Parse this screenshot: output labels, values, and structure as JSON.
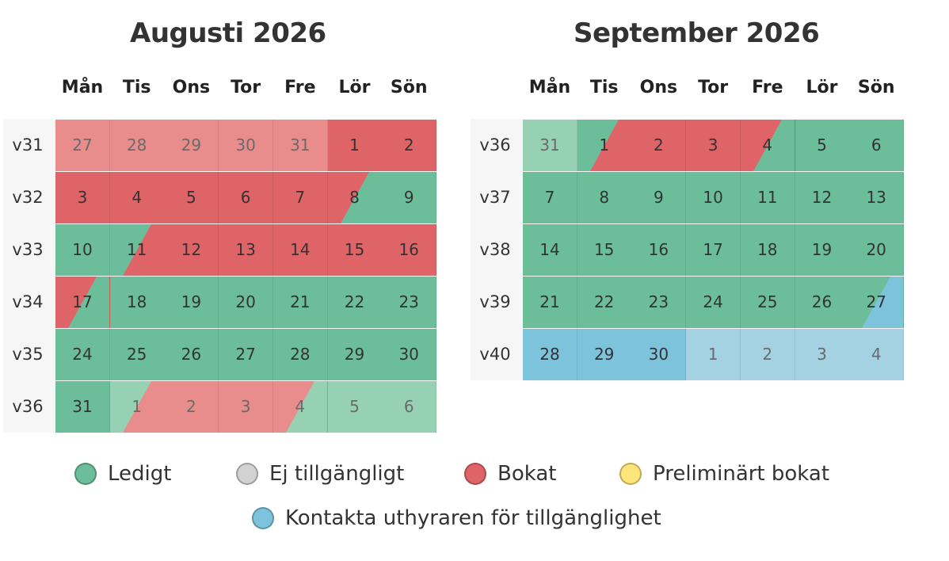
{
  "colors": {
    "free": "#6bbe99",
    "free_dim": "#97d1b3",
    "booked": "#df6468",
    "booked_dim": "#e98d8c",
    "contact": "#7dc3db",
    "contact_dim": "#a4d2e2",
    "unavailable": "#d2d2d2",
    "preliminary": "#fde57b"
  },
  "weekday_labels": [
    "Mån",
    "Tis",
    "Ons",
    "Tor",
    "Fre",
    "Lör",
    "Sön"
  ],
  "months": [
    {
      "title": "Augusti 2026",
      "weeks": [
        {
          "label": "v31",
          "days": [
            {
              "n": "27",
              "s": "booked",
              "dim": true
            },
            {
              "n": "28",
              "s": "booked",
              "dim": true
            },
            {
              "n": "29",
              "s": "booked",
              "dim": true
            },
            {
              "n": "30",
              "s": "booked",
              "dim": true
            },
            {
              "n": "31",
              "s": "booked",
              "dim": true
            },
            {
              "n": "1",
              "s": "booked"
            },
            {
              "n": "2",
              "s": "booked"
            }
          ]
        },
        {
          "label": "v32",
          "days": [
            {
              "n": "3",
              "s": "booked"
            },
            {
              "n": "4",
              "s": "booked"
            },
            {
              "n": "5",
              "s": "booked"
            },
            {
              "n": "6",
              "s": "booked"
            },
            {
              "n": "7",
              "s": "booked"
            },
            {
              "n": "8",
              "s": "booked",
              "to": "free"
            },
            {
              "n": "9",
              "s": "free"
            }
          ]
        },
        {
          "label": "v33",
          "days": [
            {
              "n": "10",
              "s": "free"
            },
            {
              "n": "11",
              "s": "free",
              "to": "booked"
            },
            {
              "n": "12",
              "s": "booked"
            },
            {
              "n": "13",
              "s": "booked"
            },
            {
              "n": "14",
              "s": "booked"
            },
            {
              "n": "15",
              "s": "booked"
            },
            {
              "n": "16",
              "s": "booked"
            }
          ]
        },
        {
          "label": "v34",
          "days": [
            {
              "n": "17",
              "s": "booked",
              "to": "free"
            },
            {
              "n": "18",
              "s": "free"
            },
            {
              "n": "19",
              "s": "free"
            },
            {
              "n": "20",
              "s": "free"
            },
            {
              "n": "21",
              "s": "free"
            },
            {
              "n": "22",
              "s": "free"
            },
            {
              "n": "23",
              "s": "free"
            }
          ]
        },
        {
          "label": "v35",
          "days": [
            {
              "n": "24",
              "s": "free"
            },
            {
              "n": "25",
              "s": "free"
            },
            {
              "n": "26",
              "s": "free"
            },
            {
              "n": "27",
              "s": "free"
            },
            {
              "n": "28",
              "s": "free"
            },
            {
              "n": "29",
              "s": "free"
            },
            {
              "n": "30",
              "s": "free"
            }
          ]
        },
        {
          "label": "v36",
          "days": [
            {
              "n": "31",
              "s": "free"
            },
            {
              "n": "1",
              "s": "free",
              "to": "booked",
              "dim": true
            },
            {
              "n": "2",
              "s": "booked",
              "dim": true
            },
            {
              "n": "3",
              "s": "booked",
              "dim": true
            },
            {
              "n": "4",
              "s": "booked",
              "to": "free",
              "dim": true
            },
            {
              "n": "5",
              "s": "free",
              "dim": true
            },
            {
              "n": "6",
              "s": "free",
              "dim": true
            }
          ]
        }
      ]
    },
    {
      "title": "September 2026",
      "weeks": [
        {
          "label": "v36",
          "days": [
            {
              "n": "31",
              "s": "free",
              "dim": true
            },
            {
              "n": "1",
              "s": "free",
              "to": "booked"
            },
            {
              "n": "2",
              "s": "booked"
            },
            {
              "n": "3",
              "s": "booked"
            },
            {
              "n": "4",
              "s": "booked",
              "to": "free"
            },
            {
              "n": "5",
              "s": "free"
            },
            {
              "n": "6",
              "s": "free"
            }
          ]
        },
        {
          "label": "v37",
          "days": [
            {
              "n": "7",
              "s": "free"
            },
            {
              "n": "8",
              "s": "free"
            },
            {
              "n": "9",
              "s": "free"
            },
            {
              "n": "10",
              "s": "free"
            },
            {
              "n": "11",
              "s": "free"
            },
            {
              "n": "12",
              "s": "free"
            },
            {
              "n": "13",
              "s": "free"
            }
          ]
        },
        {
          "label": "v38",
          "days": [
            {
              "n": "14",
              "s": "free"
            },
            {
              "n": "15",
              "s": "free"
            },
            {
              "n": "16",
              "s": "free"
            },
            {
              "n": "17",
              "s": "free"
            },
            {
              "n": "18",
              "s": "free"
            },
            {
              "n": "19",
              "s": "free"
            },
            {
              "n": "20",
              "s": "free"
            }
          ]
        },
        {
          "label": "v39",
          "days": [
            {
              "n": "21",
              "s": "free"
            },
            {
              "n": "22",
              "s": "free"
            },
            {
              "n": "23",
              "s": "free"
            },
            {
              "n": "24",
              "s": "free"
            },
            {
              "n": "25",
              "s": "free"
            },
            {
              "n": "26",
              "s": "free"
            },
            {
              "n": "27",
              "s": "free",
              "to": "contact"
            }
          ]
        },
        {
          "label": "v40",
          "days": [
            {
              "n": "28",
              "s": "contact"
            },
            {
              "n": "29",
              "s": "contact"
            },
            {
              "n": "30",
              "s": "contact"
            },
            {
              "n": "1",
              "s": "contact",
              "dim": true
            },
            {
              "n": "2",
              "s": "contact",
              "dim": true
            },
            {
              "n": "3",
              "s": "contact",
              "dim": true
            },
            {
              "n": "4",
              "s": "contact",
              "dim": true
            }
          ]
        }
      ]
    }
  ],
  "legend": [
    {
      "label": "Ledigt",
      "status": "free",
      "icon": "free-status-dot-icon"
    },
    {
      "label": "Ej tillgängligt",
      "status": "unavailable",
      "icon": "unavailable-status-dot-icon"
    },
    {
      "label": "Bokat",
      "status": "booked",
      "icon": "booked-status-dot-icon"
    },
    {
      "label": "Preliminärt bokat",
      "status": "preliminary",
      "icon": "preliminary-status-dot-icon"
    },
    {
      "label": "Kontakta uthyraren för tillgänglighet",
      "status": "contact",
      "icon": "contact-status-dot-icon"
    }
  ]
}
